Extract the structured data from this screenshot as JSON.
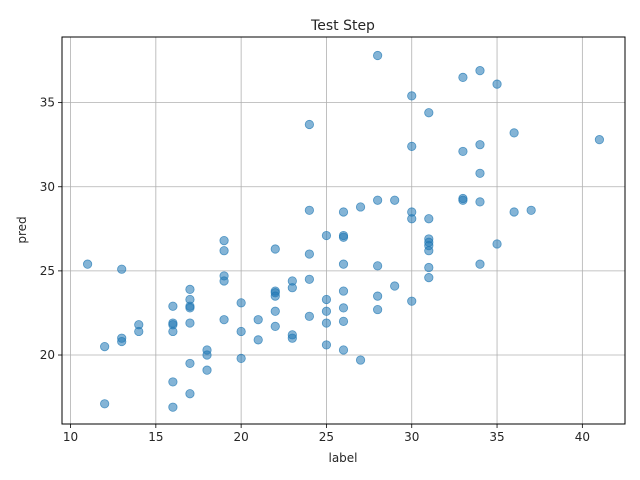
{
  "chart_data": {
    "type": "scatter",
    "title": "Test Step",
    "xlabel": "label",
    "ylabel": "pred",
    "xlim": [
      9.5,
      42.5
    ],
    "ylim": [
      15.9,
      38.9
    ],
    "xticks": [
      10,
      15,
      20,
      25,
      30,
      35,
      40
    ],
    "yticks": [
      20,
      25,
      30,
      35
    ],
    "grid": true,
    "point_color": "#1f77b4",
    "points": [
      [
        28,
        37.8
      ],
      [
        34,
        36.9
      ],
      [
        33,
        36.5
      ],
      [
        35,
        36.1
      ],
      [
        30,
        35.4
      ],
      [
        31,
        34.4
      ],
      [
        24,
        33.7
      ],
      [
        36,
        33.2
      ],
      [
        41,
        32.8
      ],
      [
        34,
        32.5
      ],
      [
        30,
        32.4
      ],
      [
        33,
        32.1
      ],
      [
        34,
        30.8
      ],
      [
        33,
        29.3
      ],
      [
        33,
        29.2
      ],
      [
        28,
        29.2
      ],
      [
        29,
        29.2
      ],
      [
        34,
        29.1
      ],
      [
        27,
        28.8
      ],
      [
        24,
        28.6
      ],
      [
        26,
        28.5
      ],
      [
        30,
        28.5
      ],
      [
        36,
        28.5
      ],
      [
        37,
        28.6
      ],
      [
        30,
        28.1
      ],
      [
        31,
        28.1
      ],
      [
        25,
        27.1
      ],
      [
        26,
        27.1
      ],
      [
        26,
        27.0
      ],
      [
        31,
        26.9
      ],
      [
        31,
        26.7
      ],
      [
        31,
        26.5
      ],
      [
        19,
        26.8
      ],
      [
        35,
        26.6
      ],
      [
        22,
        26.3
      ],
      [
        19,
        26.2
      ],
      [
        31,
        26.2
      ],
      [
        24,
        26.0
      ],
      [
        11,
        25.4
      ],
      [
        26,
        25.4
      ],
      [
        34,
        25.4
      ],
      [
        28,
        25.3
      ],
      [
        31,
        25.2
      ],
      [
        13,
        25.1
      ],
      [
        19,
        24.7
      ],
      [
        31,
        24.6
      ],
      [
        19,
        24.4
      ],
      [
        23,
        24.4
      ],
      [
        24,
        24.5
      ],
      [
        29,
        24.1
      ],
      [
        17,
        23.9
      ],
      [
        23,
        24.0
      ],
      [
        22,
        23.8
      ],
      [
        22,
        23.7
      ],
      [
        26,
        23.8
      ],
      [
        22,
        23.5
      ],
      [
        28,
        23.5
      ],
      [
        17,
        23.3
      ],
      [
        25,
        23.3
      ],
      [
        20,
        23.1
      ],
      [
        30,
        23.2
      ],
      [
        16,
        22.9
      ],
      [
        17,
        22.9
      ],
      [
        17,
        22.8
      ],
      [
        26,
        22.8
      ],
      [
        22,
        22.6
      ],
      [
        25,
        22.6
      ],
      [
        28,
        22.7
      ],
      [
        24,
        22.3
      ],
      [
        19,
        22.1
      ],
      [
        21,
        22.1
      ],
      [
        26,
        22.0
      ],
      [
        16,
        21.9
      ],
      [
        16,
        21.8
      ],
      [
        14,
        21.8
      ],
      [
        17,
        21.9
      ],
      [
        25,
        21.9
      ],
      [
        22,
        21.7
      ],
      [
        14,
        21.4
      ],
      [
        16,
        21.4
      ],
      [
        20,
        21.4
      ],
      [
        23,
        21.2
      ],
      [
        13,
        21.0
      ],
      [
        13,
        20.8
      ],
      [
        21,
        20.9
      ],
      [
        23,
        21.0
      ],
      [
        12,
        20.5
      ],
      [
        18,
        20.3
      ],
      [
        25,
        20.6
      ],
      [
        18,
        20.0
      ],
      [
        26,
        20.3
      ],
      [
        20,
        19.8
      ],
      [
        27,
        19.7
      ],
      [
        17,
        19.5
      ],
      [
        18,
        19.1
      ],
      [
        16,
        18.4
      ],
      [
        17,
        17.7
      ],
      [
        12,
        17.1
      ],
      [
        16,
        16.9
      ]
    ]
  }
}
